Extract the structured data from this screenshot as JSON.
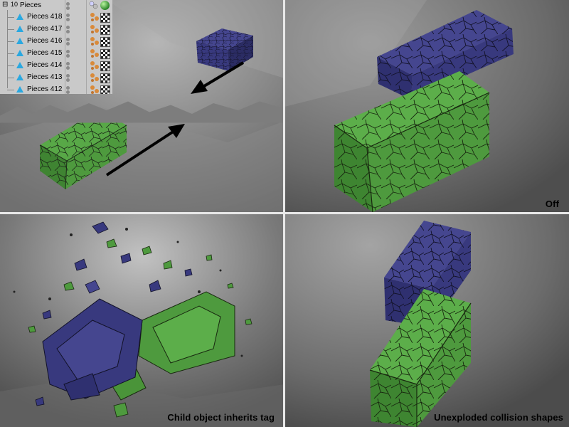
{
  "object_manager": {
    "root": {
      "label": "Pieces",
      "count": "10"
    },
    "items": [
      {
        "label": "Pieces 418"
      },
      {
        "label": "Pieces 417"
      },
      {
        "label": "Pieces 416"
      },
      {
        "label": "Pieces 415"
      },
      {
        "label": "Pieces 414"
      },
      {
        "label": "Pieces 413"
      },
      {
        "label": "Pieces 412"
      }
    ],
    "icons": [
      "null-object-icon",
      "polygon-object-icon",
      "visibility-dots-icon",
      "phong-tag-icon",
      "texture-tag-icon"
    ]
  },
  "panels": [
    {
      "caption": ""
    },
    {
      "caption": "Off"
    },
    {
      "caption": "Child object inherits tag"
    },
    {
      "caption": "Unexploded collision shapes"
    }
  ],
  "colors": {
    "green_block": "#4e9a3e",
    "blue_block": "#38397e",
    "edge_lines": "#1c2a18",
    "floor": "#6e6e6e"
  }
}
